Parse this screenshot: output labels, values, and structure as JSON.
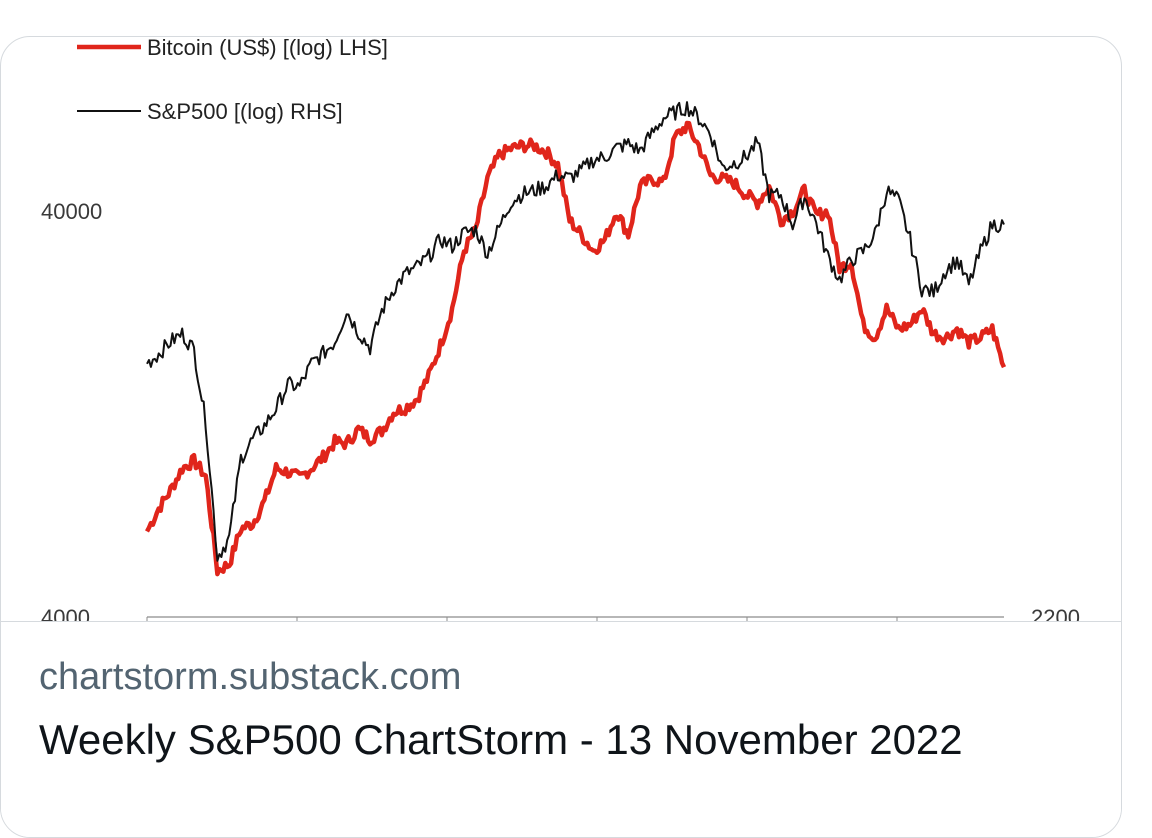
{
  "link_card": {
    "domain": "chartstorm.substack.com",
    "title": "Weekly S&P500 ChartStorm - 13 November 2022"
  },
  "chart_data": {
    "type": "line",
    "legend": {
      "placement": "top-left"
    },
    "grid": false,
    "left_axis": {
      "scale": "log",
      "ylim": [
        4000,
        80000
      ],
      "tick_labels": [
        "4000",
        "40000"
      ]
    },
    "right_axis": {
      "scale": "log",
      "ylim": [
        2200,
        4900
      ],
      "tick_labels": [
        "2200"
      ]
    },
    "series": [
      {
        "name": "Bitcoin (US$) [(log) LHS]",
        "axis": "left",
        "color": "#e0251b",
        "values": [
          6500,
          7400,
          8200,
          9300,
          9700,
          8900,
          5200,
          5400,
          6600,
          6800,
          7700,
          9300,
          9100,
          8800,
          9300,
          9900,
          10800,
          10700,
          11600,
          11000,
          11500,
          12800,
          13100,
          13800,
          15700,
          18700,
          23000,
          32000,
          36000,
          48000,
          55000,
          57000,
          58000,
          58000,
          56000,
          52000,
          38000,
          35000,
          32000,
          34000,
          40000,
          35000,
          46000,
          48000,
          47000,
          61000,
          65000,
          58000,
          49000,
          48000,
          47000,
          44000,
          42000,
          46000,
          38000,
          40000,
          45000,
          39000,
          40000,
          29000,
          30000,
          21000,
          19500,
          23000,
          20500,
          21000,
          23000,
          20000,
          19500,
          20500,
          19000,
          19500,
          20500,
          16500
        ]
      },
      {
        "name": "S&P500 [(log) RHS]",
        "axis": "right",
        "color": "#111111",
        "values": [
          3230,
          3280,
          3340,
          3380,
          3300,
          2960,
          2410,
          2480,
          2800,
          2880,
          2940,
          3020,
          3130,
          3120,
          3230,
          3280,
          3340,
          3500,
          3390,
          3310,
          3500,
          3620,
          3700,
          3740,
          3800,
          3900,
          3860,
          3940,
          3960,
          3820,
          3970,
          4130,
          4180,
          4200,
          4230,
          4300,
          4280,
          4330,
          4400,
          4420,
          4480,
          4510,
          4460,
          4580,
          4690,
          4730,
          4770,
          4690,
          4580,
          4350,
          4380,
          4420,
          4520,
          4170,
          4170,
          3990,
          4160,
          4000,
          3800,
          3670,
          3780,
          3830,
          3930,
          4200,
          4140,
          3900,
          3620,
          3600,
          3720,
          3780,
          3640,
          3830,
          3990,
          3990
        ]
      }
    ]
  }
}
